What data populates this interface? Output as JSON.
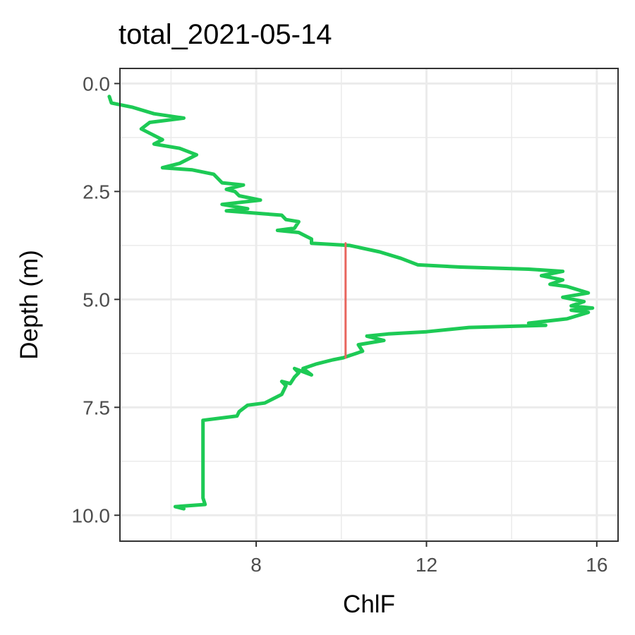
{
  "chart_data": {
    "type": "line",
    "title": "total_2021-05-14",
    "xlabel": "ChlF",
    "ylabel": "Depth (m)",
    "xlim": [
      4.8,
      16.5
    ],
    "ylim": [
      10.6,
      -0.35
    ],
    "y_reversed": true,
    "x_ticks": [
      8,
      12,
      16
    ],
    "x_tick_labels": [
      "8",
      "12",
      "16"
    ],
    "y_ticks": [
      0.0,
      2.5,
      5.0,
      7.5,
      10.0
    ],
    "y_tick_labels": [
      "0.0",
      "2.5",
      "5.0",
      "7.5",
      "10.0"
    ],
    "grid": true,
    "legend": "none",
    "series": [
      {
        "color": "#1dca55",
        "points": [
          [
            6.3,
            9.85
          ],
          [
            6.1,
            9.8
          ],
          [
            6.8,
            9.75
          ],
          [
            6.75,
            9.6
          ],
          [
            6.75,
            8.5
          ],
          [
            6.75,
            7.8
          ],
          [
            7.55,
            7.7
          ],
          [
            7.6,
            7.6
          ],
          [
            7.8,
            7.45
          ],
          [
            8.2,
            7.4
          ],
          [
            8.4,
            7.3
          ],
          [
            8.6,
            7.2
          ],
          [
            8.7,
            7.0
          ],
          [
            8.6,
            6.9
          ],
          [
            8.8,
            6.95
          ],
          [
            8.9,
            6.8
          ],
          [
            9.0,
            6.7
          ],
          [
            8.9,
            6.6
          ],
          [
            9.3,
            6.75
          ],
          [
            9.1,
            6.6
          ],
          [
            9.4,
            6.5
          ],
          [
            9.8,
            6.4
          ],
          [
            10.05,
            6.35
          ],
          [
            10.2,
            6.3
          ],
          [
            10.5,
            6.2
          ],
          [
            10.4,
            6.05
          ],
          [
            11.0,
            5.95
          ],
          [
            10.6,
            5.85
          ],
          [
            11.1,
            5.8
          ],
          [
            12.0,
            5.75
          ],
          [
            13.0,
            5.65
          ],
          [
            14.8,
            5.6
          ],
          [
            14.4,
            5.55
          ],
          [
            15.3,
            5.45
          ],
          [
            15.8,
            5.3
          ],
          [
            15.4,
            5.25
          ],
          [
            15.9,
            5.2
          ],
          [
            15.4,
            5.15
          ],
          [
            15.7,
            5.05
          ],
          [
            15.2,
            4.95
          ],
          [
            15.8,
            4.85
          ],
          [
            15.3,
            4.7
          ],
          [
            14.9,
            4.65
          ],
          [
            15.2,
            4.55
          ],
          [
            14.7,
            4.45
          ],
          [
            15.2,
            4.35
          ],
          [
            14.4,
            4.3
          ],
          [
            12.8,
            4.25
          ],
          [
            11.8,
            4.2
          ],
          [
            11.4,
            4.05
          ],
          [
            10.9,
            3.9
          ],
          [
            10.2,
            3.75
          ],
          [
            9.3,
            3.7
          ],
          [
            9.3,
            3.6
          ],
          [
            9.1,
            3.5
          ],
          [
            9.0,
            3.45
          ],
          [
            8.5,
            3.4
          ],
          [
            8.9,
            3.35
          ],
          [
            9.0,
            3.2
          ],
          [
            8.7,
            3.15
          ],
          [
            8.6,
            3.05
          ],
          [
            7.3,
            2.95
          ],
          [
            7.8,
            2.9
          ],
          [
            7.2,
            2.8
          ],
          [
            8.1,
            2.7
          ],
          [
            7.6,
            2.6
          ],
          [
            7.5,
            2.5
          ],
          [
            7.3,
            2.45
          ],
          [
            7.7,
            2.35
          ],
          [
            7.2,
            2.3
          ],
          [
            7.0,
            2.1
          ],
          [
            6.5,
            2.0
          ],
          [
            5.8,
            1.95
          ],
          [
            6.2,
            1.85
          ],
          [
            6.6,
            1.65
          ],
          [
            6.2,
            1.5
          ],
          [
            5.6,
            1.4
          ],
          [
            5.8,
            1.3
          ],
          [
            5.5,
            1.15
          ],
          [
            5.3,
            1.05
          ],
          [
            5.5,
            0.9
          ],
          [
            6.3,
            0.8
          ],
          [
            5.6,
            0.7
          ],
          [
            5.1,
            0.55
          ],
          [
            4.6,
            0.45
          ],
          [
            4.55,
            0.3
          ]
        ]
      },
      {
        "color": "#e8665e",
        "points": [
          [
            10.1,
            3.7
          ],
          [
            10.1,
            6.35
          ]
        ]
      }
    ]
  }
}
